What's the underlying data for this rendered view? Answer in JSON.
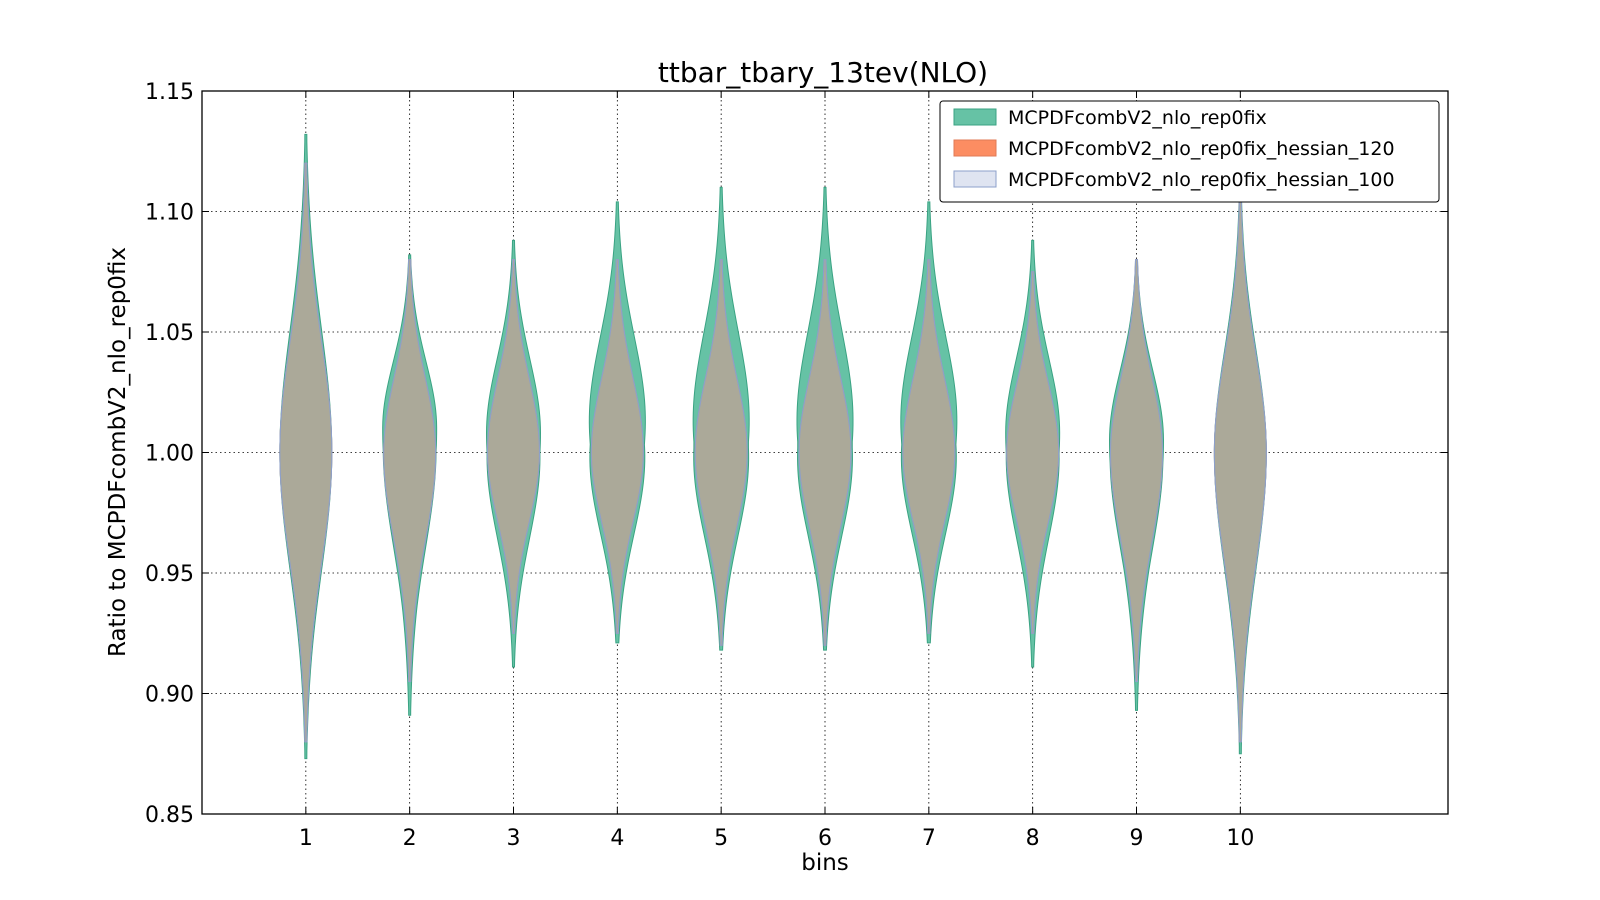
{
  "chart_data": {
    "type": "violin",
    "title": "ttbar_tbary_13tev(NLO)",
    "xlabel": "bins",
    "ylabel": "Ratio to MCPDFcombV2_nlo_rep0fix",
    "ylim": [
      0.85,
      1.15
    ],
    "xlim": [
      0,
      12
    ],
    "yticks": [
      "0.85",
      "0.90",
      "0.95",
      "1.00",
      "1.05",
      "1.10",
      "1.15"
    ],
    "xticks": [
      "1",
      "2",
      "3",
      "4",
      "5",
      "6",
      "7",
      "8",
      "9",
      "10"
    ],
    "grid": true,
    "legend_position": "top-right",
    "series": [
      {
        "name": "MCPDFcombV2_nlo_rep0fix",
        "color": "#66c2a5",
        "edge": "#3aa383",
        "bins": [
          {
            "bin": 1,
            "center": 1.0,
            "min": 0.873,
            "max": 1.132,
            "width": 0.5,
            "shift": 0.0
          },
          {
            "bin": 2,
            "center": 1.01,
            "min": 0.891,
            "max": 1.082,
            "width": 0.52,
            "shift": 0.008
          },
          {
            "bin": 3,
            "center": 1.008,
            "min": 0.911,
            "max": 1.088,
            "width": 0.52,
            "shift": 0.01
          },
          {
            "bin": 4,
            "center": 1.013,
            "min": 0.921,
            "max": 1.104,
            "width": 0.54,
            "shift": 0.015
          },
          {
            "bin": 5,
            "center": 1.013,
            "min": 0.918,
            "max": 1.11,
            "width": 0.54,
            "shift": 0.015
          },
          {
            "bin": 6,
            "center": 1.013,
            "min": 0.918,
            "max": 1.11,
            "width": 0.54,
            "shift": 0.015
          },
          {
            "bin": 7,
            "center": 1.013,
            "min": 0.921,
            "max": 1.104,
            "width": 0.54,
            "shift": 0.015
          },
          {
            "bin": 8,
            "center": 1.008,
            "min": 0.911,
            "max": 1.088,
            "width": 0.52,
            "shift": 0.01
          },
          {
            "bin": 9,
            "center": 1.005,
            "min": 0.893,
            "max": 1.08,
            "width": 0.52,
            "shift": 0.006
          },
          {
            "bin": 10,
            "center": 1.0,
            "min": 0.875,
            "max": 1.11,
            "width": 0.5,
            "shift": 0.0
          }
        ]
      },
      {
        "name": "MCPDFcombV2_nlo_rep0fix_hessian_120",
        "color": "#fc8d62",
        "edge": "#e07a55",
        "bins": [
          {
            "bin": 1,
            "center": 1.0,
            "min": 0.88,
            "max": 1.12,
            "width": 0.5,
            "shift": 0.0
          },
          {
            "bin": 2,
            "center": 1.0,
            "min": 0.905,
            "max": 1.08,
            "width": 0.5,
            "shift": 0.0
          },
          {
            "bin": 3,
            "center": 1.0,
            "min": 0.925,
            "max": 1.08,
            "width": 0.5,
            "shift": 0.0
          },
          {
            "bin": 4,
            "center": 1.0,
            "min": 0.925,
            "max": 1.08,
            "width": 0.5,
            "shift": 0.0
          },
          {
            "bin": 5,
            "center": 1.0,
            "min": 0.92,
            "max": 1.08,
            "width": 0.5,
            "shift": 0.0
          },
          {
            "bin": 6,
            "center": 1.0,
            "min": 0.92,
            "max": 1.08,
            "width": 0.5,
            "shift": 0.0
          },
          {
            "bin": 7,
            "center": 1.0,
            "min": 0.925,
            "max": 1.08,
            "width": 0.5,
            "shift": 0.0
          },
          {
            "bin": 8,
            "center": 1.0,
            "min": 0.925,
            "max": 1.075,
            "width": 0.5,
            "shift": 0.0
          },
          {
            "bin": 9,
            "center": 1.0,
            "min": 0.905,
            "max": 1.08,
            "width": 0.5,
            "shift": 0.0
          },
          {
            "bin": 10,
            "center": 1.0,
            "min": 0.88,
            "max": 1.105,
            "width": 0.5,
            "shift": 0.0
          }
        ]
      },
      {
        "name": "MCPDFcombV2_nlo_rep0fix_hessian_100",
        "color": "#dfe4f1",
        "edge": "#8da0cb",
        "bins": [
          {
            "bin": 1,
            "center": 1.0,
            "min": 0.88,
            "max": 1.12,
            "width": 0.5,
            "shift": 0.0
          },
          {
            "bin": 2,
            "center": 1.0,
            "min": 0.905,
            "max": 1.08,
            "width": 0.5,
            "shift": 0.0
          },
          {
            "bin": 3,
            "center": 1.0,
            "min": 0.925,
            "max": 1.08,
            "width": 0.5,
            "shift": 0.0
          },
          {
            "bin": 4,
            "center": 1.0,
            "min": 0.925,
            "max": 1.08,
            "width": 0.5,
            "shift": 0.0
          },
          {
            "bin": 5,
            "center": 1.0,
            "min": 0.92,
            "max": 1.08,
            "width": 0.5,
            "shift": 0.0
          },
          {
            "bin": 6,
            "center": 1.0,
            "min": 0.92,
            "max": 1.08,
            "width": 0.5,
            "shift": 0.0
          },
          {
            "bin": 7,
            "center": 1.0,
            "min": 0.925,
            "max": 1.08,
            "width": 0.5,
            "shift": 0.0
          },
          {
            "bin": 8,
            "center": 1.0,
            "min": 0.925,
            "max": 1.075,
            "width": 0.5,
            "shift": 0.0
          },
          {
            "bin": 9,
            "center": 1.0,
            "min": 0.905,
            "max": 1.08,
            "width": 0.5,
            "shift": 0.0
          },
          {
            "bin": 10,
            "center": 1.0,
            "min": 0.88,
            "max": 1.105,
            "width": 0.5,
            "shift": 0.0
          }
        ]
      }
    ],
    "overlap_color": "#a4a393"
  }
}
